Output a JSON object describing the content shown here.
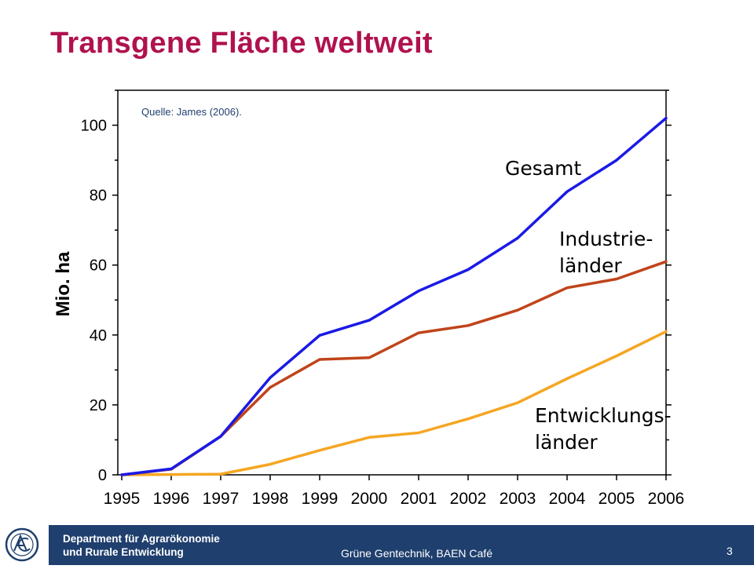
{
  "slide": {
    "title": "Transgene Fläche weltweit",
    "title_color": "#B0124E"
  },
  "chart_data": {
    "type": "line",
    "title": "",
    "source_note": "Quelle: James (2006).",
    "xlabel": "",
    "ylabel": "Mio. ha",
    "x": [
      "1995",
      "1996",
      "1997",
      "1998",
      "1999",
      "2000",
      "2001",
      "2002",
      "2003",
      "2004",
      "2005",
      "2006"
    ],
    "yticks": [
      "0",
      "20",
      "40",
      "60",
      "80",
      "100"
    ],
    "ylim": [
      0,
      110
    ],
    "grid": false,
    "series": [
      {
        "name": "Gesamt",
        "color": "#1A1AE6",
        "values": [
          0,
          1.7,
          11,
          27.8,
          39.9,
          44.2,
          52.6,
          58.7,
          67.7,
          81,
          90,
          102
        ]
      },
      {
        "name": "Industrie- länder",
        "color": "#C0441B",
        "values": [
          0,
          1.6,
          11,
          25,
          33,
          33.5,
          40.6,
          42.7,
          47.1,
          53.5,
          56,
          61
        ]
      },
      {
        "name": "Entwicklungs- länder",
        "color": "#F5A623",
        "values": [
          0,
          0.1,
          0.2,
          3,
          7,
          10.7,
          12,
          16,
          20.6,
          27.5,
          34,
          41
        ]
      }
    ],
    "labels": [
      {
        "series": "Gesamt",
        "lines": [
          "Gesamt"
        ]
      },
      {
        "series": "Industrie- länder",
        "lines": [
          "Industrie-",
          "länder"
        ]
      },
      {
        "series": "Entwicklungs- länder",
        "lines": [
          "Entwicklungs-",
          "länder"
        ]
      }
    ]
  },
  "footer": {
    "bar_color": "#1F3F6E",
    "dept_line1": "Department für Agrarökonomie",
    "dept_line2": "und Rurale Entwicklung",
    "center": "Grüne Gentechnik, BAEN Café",
    "page": "3",
    "logo_icon": "university-seal-logo"
  }
}
